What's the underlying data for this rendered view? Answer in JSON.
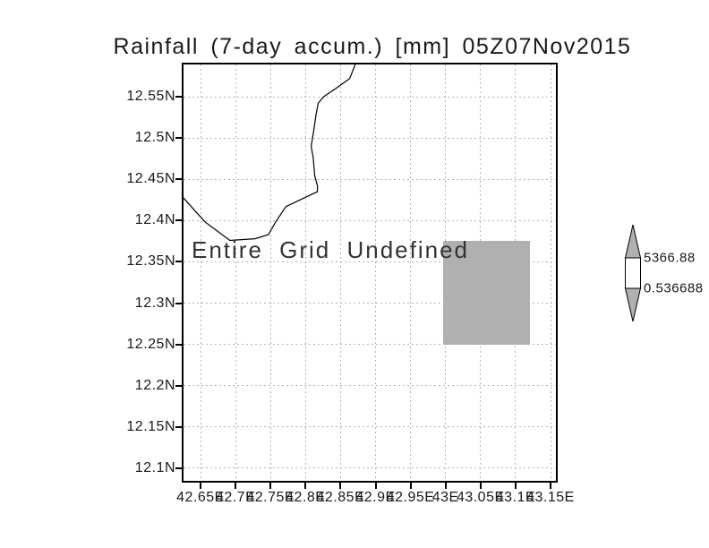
{
  "title": "Rainfall (7-day accum.) [mm] 05Z07Nov2015",
  "annotation": "Entire Grid Undefined",
  "colorbar": {
    "max_label": "5366.88",
    "min_label": "0.536688",
    "arrow_fill": "#b0b0b0",
    "mid_fill": "#ffffff"
  },
  "chart_data": {
    "type": "heatmap",
    "title": "Rainfall (7-day accum.) [mm] 05Z07Nov2015",
    "status": "Entire Grid Undefined",
    "xlabel": "",
    "ylabel": "",
    "xlim": [
      42.624,
      43.16
    ],
    "ylim": [
      12.084,
      12.589
    ],
    "grid": true,
    "grid_color": "#b4b4b4",
    "x_tick_values": [
      42.65,
      42.7,
      42.75,
      42.8,
      42.85,
      42.9,
      42.95,
      43.0,
      43.05,
      43.1,
      43.15
    ],
    "x_tick_labels": [
      "42.65E",
      "42.7E",
      "42.75E",
      "42.8E",
      "42.85E",
      "42.9E",
      "42.95E",
      "43E",
      "43.05E",
      "43.1E",
      "43.15E"
    ],
    "y_tick_values": [
      12.55,
      12.5,
      12.45,
      12.4,
      12.35,
      12.3,
      12.25,
      12.2,
      12.15,
      12.1
    ],
    "y_tick_labels": [
      "12.55N",
      "12.5N",
      "12.45N",
      "12.4N",
      "12.35N",
      "12.3N",
      "12.25N",
      "12.2N",
      "12.15N",
      "12.1N"
    ],
    "values": null,
    "undefined_cell": {
      "lon": [
        42.997,
        43.12
      ],
      "lat": [
        12.25,
        12.375
      ],
      "color": "#b0b0b0"
    },
    "coastline_lonlat": [
      [
        42.871,
        12.589
      ],
      [
        42.863,
        12.572
      ],
      [
        42.845,
        12.561
      ],
      [
        42.826,
        12.55
      ],
      [
        42.818,
        12.542
      ],
      [
        42.815,
        12.528
      ],
      [
        42.811,
        12.505
      ],
      [
        42.808,
        12.49
      ],
      [
        42.811,
        12.476
      ],
      [
        42.813,
        12.455
      ],
      [
        42.817,
        12.442
      ],
      [
        42.817,
        12.435
      ],
      [
        42.792,
        12.425
      ],
      [
        42.772,
        12.417
      ],
      [
        42.757,
        12.398
      ],
      [
        42.747,
        12.383
      ],
      [
        42.728,
        12.378
      ],
      [
        42.692,
        12.376
      ],
      [
        42.657,
        12.398
      ],
      [
        42.642,
        12.412
      ],
      [
        42.624,
        12.429
      ]
    ],
    "legend_position": "right",
    "colorbar": {
      "style": "arrow",
      "high_label": "5366.88",
      "low_label": "0.536688",
      "segments": [
        {
          "part": "upper-triangle",
          "color": "#b0b0b0"
        },
        {
          "part": "middle-rect",
          "color": "#ffffff"
        },
        {
          "part": "lower-triangle",
          "color": "#b0b0b0"
        }
      ]
    }
  }
}
